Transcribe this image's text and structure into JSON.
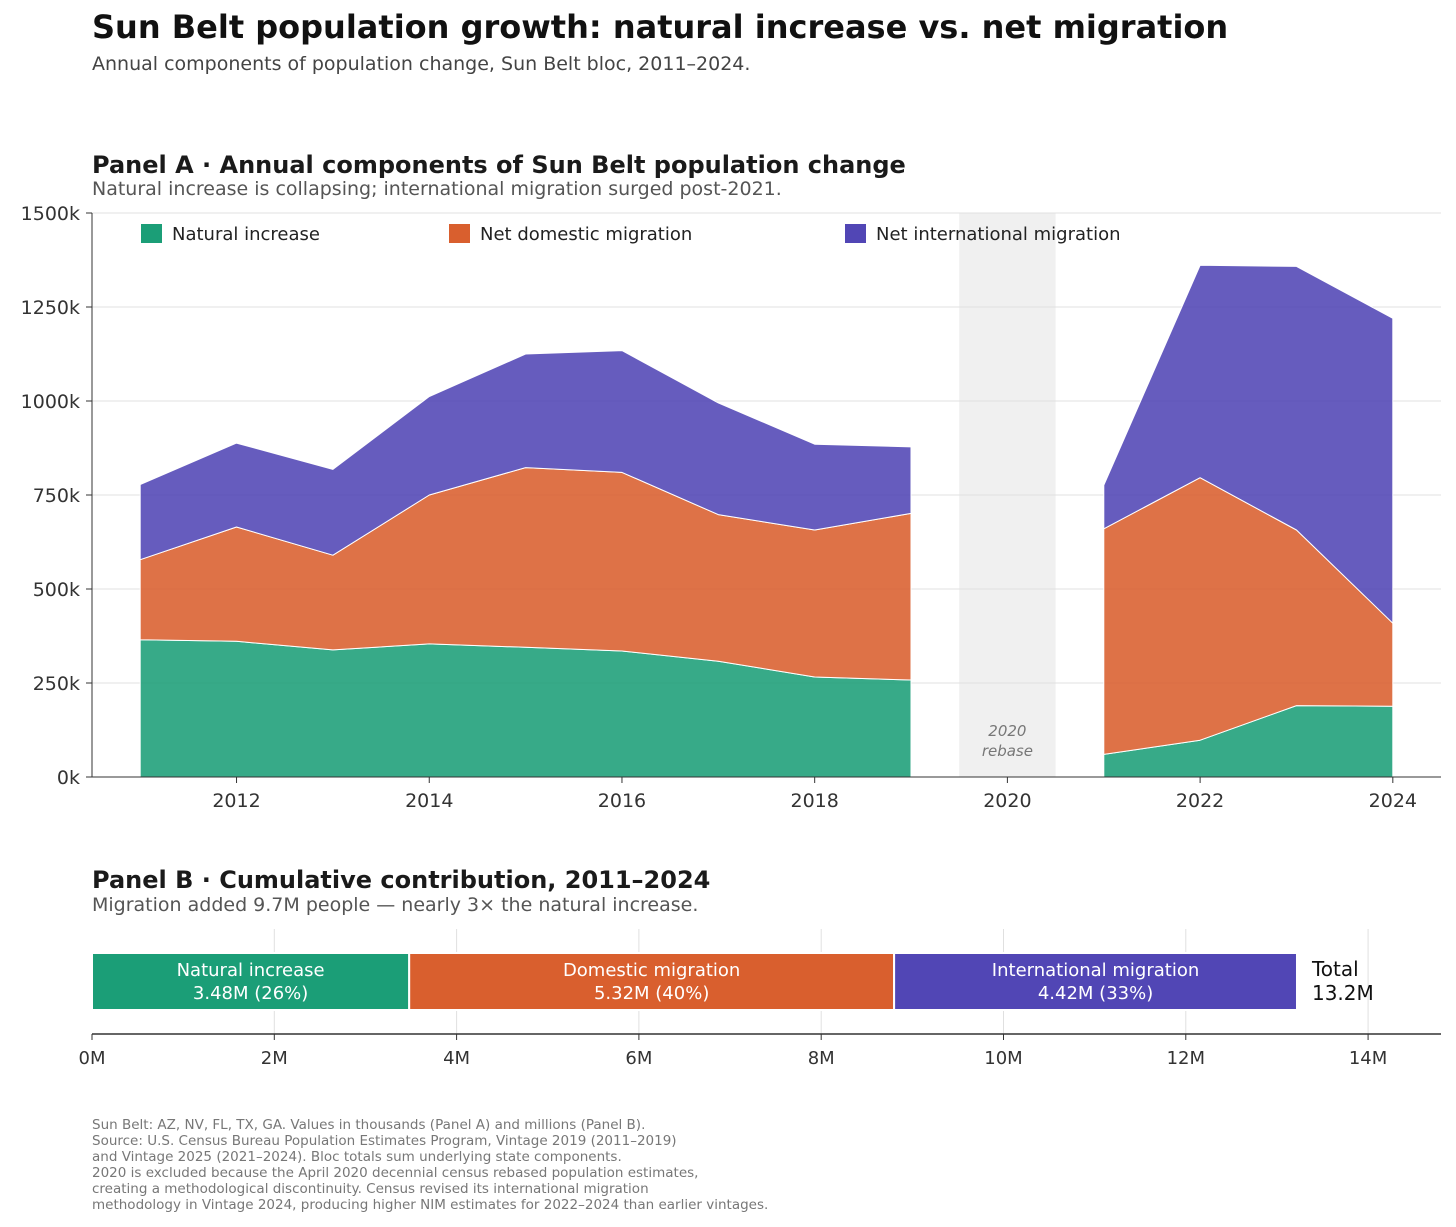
{
  "title": "Sun Belt population growth: natural increase vs. net migration",
  "subtitle": "Annual components of population change, Sun Belt bloc, 2011–2024.",
  "colors": {
    "natural": "#1b9e77",
    "domestic": "#d95f2e",
    "international": "#5146b5",
    "rebase_band": "#f0f0f0",
    "grid": "#e0e0e0"
  },
  "chart_data": [
    {
      "type": "area",
      "stacked": true,
      "title": "Panel A  ·  Annual components of Sun Belt population change",
      "subtitle": "Natural increase is collapsing; international migration surged post-2021.",
      "ylim": [
        0,
        1500
      ],
      "yticks": [
        0,
        250,
        500,
        750,
        1000,
        1250,
        1500
      ],
      "ytick_labels": [
        "0k",
        "250k",
        "500k",
        "750k",
        "1000k",
        "1250k",
        "1500k"
      ],
      "xlim": [
        2010.5,
        2024.5
      ],
      "xticks": [
        2012,
        2014,
        2016,
        2018,
        2020,
        2022,
        2024
      ],
      "xtick_labels": [
        "2012",
        "2014",
        "2016",
        "2018",
        "2020",
        "2022",
        "2024"
      ],
      "grid": "horizontal",
      "legend_position": "top",
      "x": [
        2011,
        2012,
        2013,
        2014,
        2015,
        2016,
        2017,
        2018,
        2019,
        2021,
        2022,
        2023,
        2024
      ],
      "series": [
        {
          "name": "Natural increase",
          "key": "natural",
          "values": [
            365,
            361,
            338,
            354,
            345,
            335,
            308,
            266,
            258,
            60,
            98,
            190,
            188
          ]
        },
        {
          "name": "Net domestic migration",
          "key": "domestic",
          "values": [
            213,
            304,
            252,
            396,
            478,
            475,
            390,
            391,
            443,
            600,
            698,
            467,
            221
          ]
        },
        {
          "name": "Net international migration",
          "key": "international",
          "values": [
            200,
            223,
            228,
            262,
            302,
            324,
            297,
            228,
            177,
            116,
            565,
            701,
            811
          ]
        }
      ],
      "annotation": {
        "band": [
          2019.5,
          2020.5
        ],
        "label_line1": "2020",
        "label_line2": "rebase"
      }
    },
    {
      "type": "bar",
      "orientation": "horizontal",
      "stacked": true,
      "title": "Panel B  ·  Cumulative contribution, 2011–2024",
      "subtitle": "Migration added 9.7M people — nearly 3× the natural increase.",
      "xlim": [
        0,
        14.8
      ],
      "xticks": [
        0,
        2,
        4,
        6,
        8,
        10,
        12,
        14
      ],
      "xtick_labels": [
        "0M",
        "2M",
        "4M",
        "6M",
        "8M",
        "10M",
        "12M",
        "14M"
      ],
      "segments": [
        {
          "label": "Natural increase",
          "value": 3.48,
          "value_label": "3.48M  (26%)",
          "key": "natural"
        },
        {
          "label": "Domestic migration",
          "value": 5.32,
          "value_label": "5.32M  (40%)",
          "key": "domestic"
        },
        {
          "label": "International migration",
          "value": 4.42,
          "value_label": "4.42M  (33%)",
          "key": "international"
        }
      ],
      "total_label": "Total",
      "total_value": "13.2M"
    }
  ],
  "footnote": [
    "Sun Belt: AZ, NV, FL, TX, GA. Values in thousands (Panel A) and millions (Panel B).",
    "Source: U.S. Census Bureau Population Estimates Program, Vintage 2019 (2011–2019)",
    "and Vintage 2025 (2021–2024). Bloc totals sum underlying state components.",
    "2020 is excluded because the April 2020 decennial census rebased population estimates,",
    "creating a methodological discontinuity. Census revised its international migration",
    "methodology in Vintage 2024, producing higher NIM estimates for 2022–2024 than earlier vintages."
  ]
}
